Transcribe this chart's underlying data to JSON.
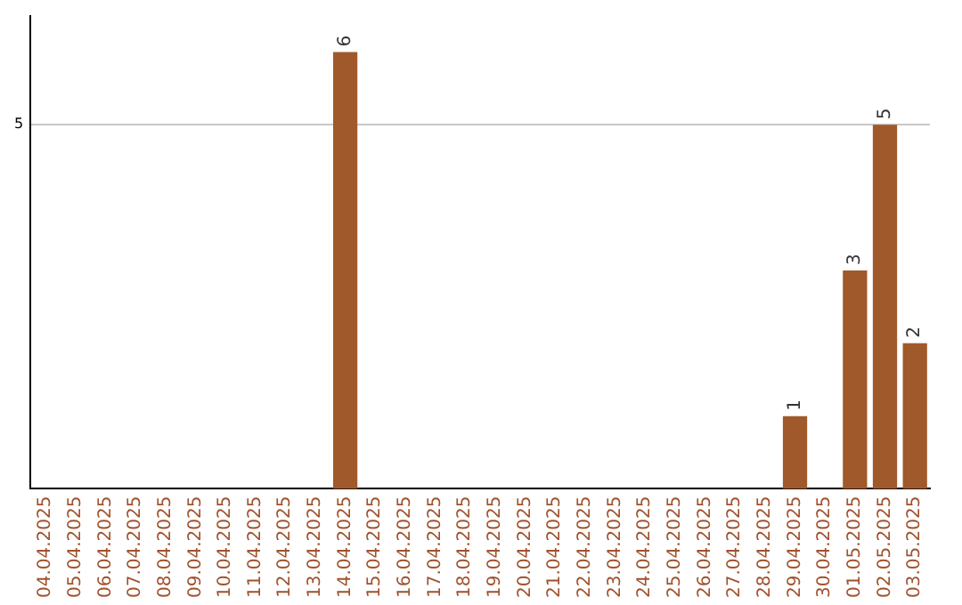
{
  "chart_data": {
    "type": "bar",
    "categories": [
      "04.04.2025",
      "05.04.2025",
      "06.04.2025",
      "07.04.2025",
      "08.04.2025",
      "09.04.2025",
      "10.04.2025",
      "11.04.2025",
      "12.04.2025",
      "13.04.2025",
      "14.04.2025",
      "15.04.2025",
      "16.04.2025",
      "17.04.2025",
      "18.04.2025",
      "19.04.2025",
      "20.04.2025",
      "21.04.2025",
      "22.04.2025",
      "23.04.2025",
      "24.04.2025",
      "25.04.2025",
      "26.04.2025",
      "27.04.2025",
      "28.04.2025",
      "29.04.2025",
      "30.04.2025",
      "01.05.2025",
      "02.05.2025",
      "03.05.2025"
    ],
    "values": [
      null,
      null,
      null,
      null,
      null,
      null,
      null,
      null,
      null,
      null,
      6,
      null,
      null,
      null,
      null,
      null,
      null,
      null,
      null,
      null,
      null,
      null,
      null,
      null,
      null,
      1,
      null,
      3,
      5,
      2
    ],
    "color": "#a0592a",
    "ylim": [
      0,
      6.5
    ],
    "yticks": [
      5
    ],
    "grid": "y",
    "data_labels": true,
    "legend": false
  }
}
